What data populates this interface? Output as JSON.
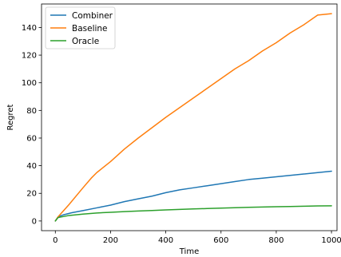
{
  "chart_data": {
    "type": "line",
    "title": "",
    "xlabel": "Time",
    "ylabel": "Regret",
    "xlim": [
      -50,
      1020
    ],
    "ylim": [
      -7,
      157
    ],
    "xticks": [
      0,
      200,
      400,
      600,
      800,
      1000
    ],
    "yticks": [
      0,
      20,
      40,
      60,
      80,
      100,
      120,
      140
    ],
    "grid": false,
    "legend_position": "top-left",
    "series": [
      {
        "name": "Combiner",
        "color": "#1f77b4",
        "x": [
          0,
          10,
          30,
          60,
          100,
          150,
          200,
          250,
          300,
          350,
          400,
          450,
          500,
          550,
          600,
          650,
          700,
          750,
          800,
          850,
          900,
          950,
          1000
        ],
        "y": [
          0,
          3,
          4.5,
          6,
          7.5,
          9.5,
          11.5,
          14,
          16,
          18,
          20.5,
          22.5,
          24,
          25.5,
          27,
          28.5,
          30,
          31,
          32,
          33,
          34,
          35,
          36
        ]
      },
      {
        "name": "Baseline",
        "color": "#ff7f0e",
        "x": [
          0,
          10,
          50,
          100,
          130,
          150,
          200,
          250,
          300,
          350,
          400,
          450,
          500,
          550,
          600,
          650,
          700,
          750,
          800,
          850,
          900,
          950,
          1000
        ],
        "y": [
          0,
          3,
          12,
          24,
          31,
          35,
          43,
          52,
          60,
          67.5,
          75,
          82,
          89,
          96,
          103,
          110,
          116,
          123,
          129,
          136,
          142,
          149,
          150
        ]
      },
      {
        "name": "Oracle",
        "color": "#2ca02c",
        "x": [
          0,
          10,
          50,
          100,
          150,
          200,
          250,
          300,
          350,
          400,
          450,
          500,
          550,
          600,
          650,
          700,
          750,
          800,
          850,
          900,
          950,
          1000
        ],
        "y": [
          0,
          2.5,
          4,
          5,
          5.8,
          6.3,
          6.8,
          7.2,
          7.6,
          8,
          8.4,
          8.7,
          9,
          9.3,
          9.6,
          9.9,
          10.1,
          10.3,
          10.5,
          10.7,
          10.9,
          11
        ]
      }
    ]
  }
}
